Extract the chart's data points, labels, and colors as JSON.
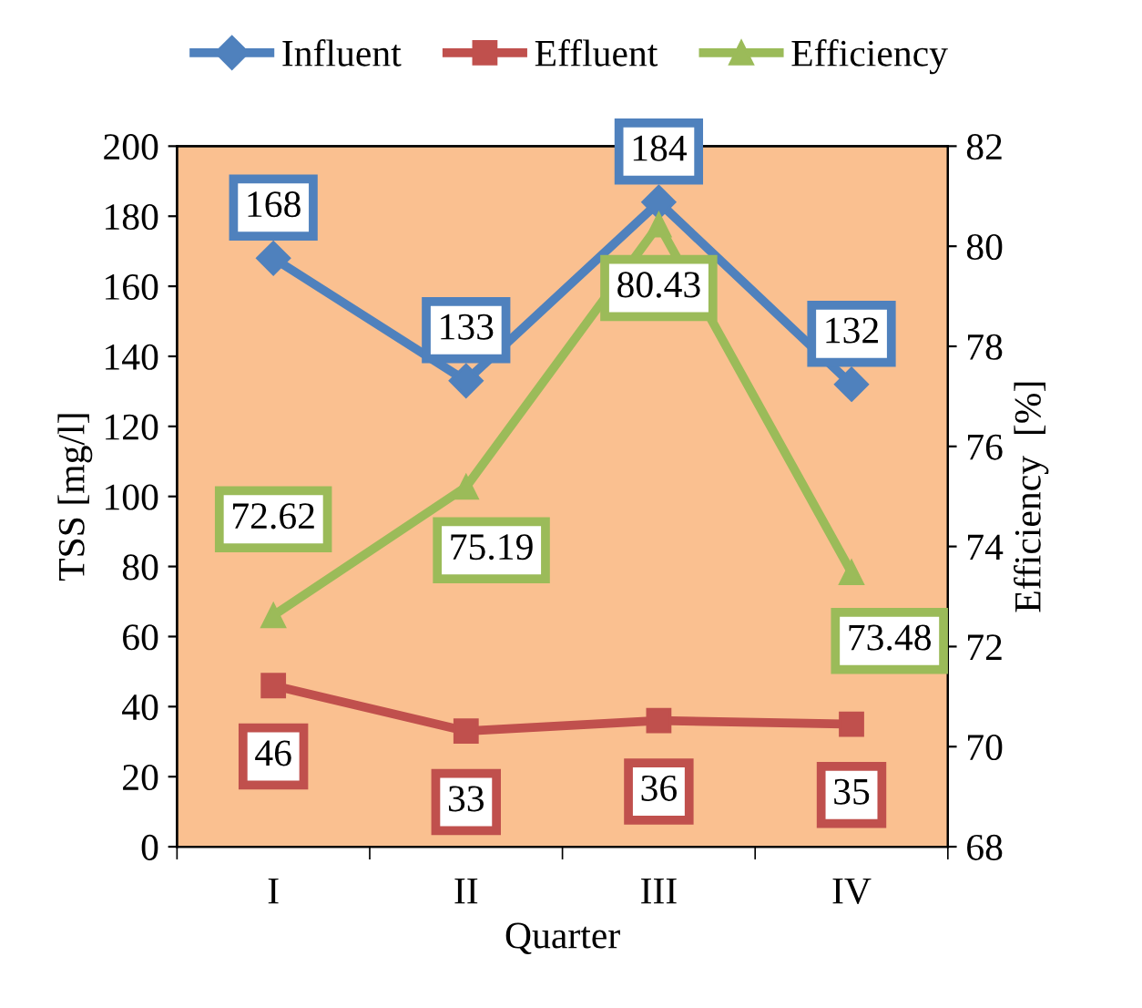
{
  "chart_data": {
    "type": "line",
    "xlabel": "Quarter",
    "ylabel": "TSS [mg/l]",
    "y2label": "Efficiency  [%]",
    "categories": [
      "I",
      "II",
      "III",
      "IV"
    ],
    "series": [
      {
        "name": "Influent",
        "color": "#4f81bd",
        "marker": "diamond",
        "values": [
          168,
          133,
          184,
          132
        ]
      },
      {
        "name": "Effluent",
        "color": "#c0504d",
        "marker": "square",
        "values": [
          46,
          33,
          36,
          35
        ]
      },
      {
        "name": "Efficiency",
        "color": "#9bbb59",
        "marker": "triangle",
        "axis": "y2",
        "values": [
          72.62,
          75.19,
          80.43,
          73.48
        ]
      }
    ],
    "ylim": [
      0,
      200
    ],
    "yticks": [
      0,
      20,
      40,
      60,
      80,
      100,
      120,
      140,
      160,
      180,
      200
    ],
    "y2lim": [
      68,
      82
    ],
    "y2ticks": [
      68,
      70,
      72,
      74,
      76,
      78,
      80,
      82
    ],
    "data_labels": true,
    "grid": false,
    "legend": "top",
    "line_style": "solid"
  }
}
